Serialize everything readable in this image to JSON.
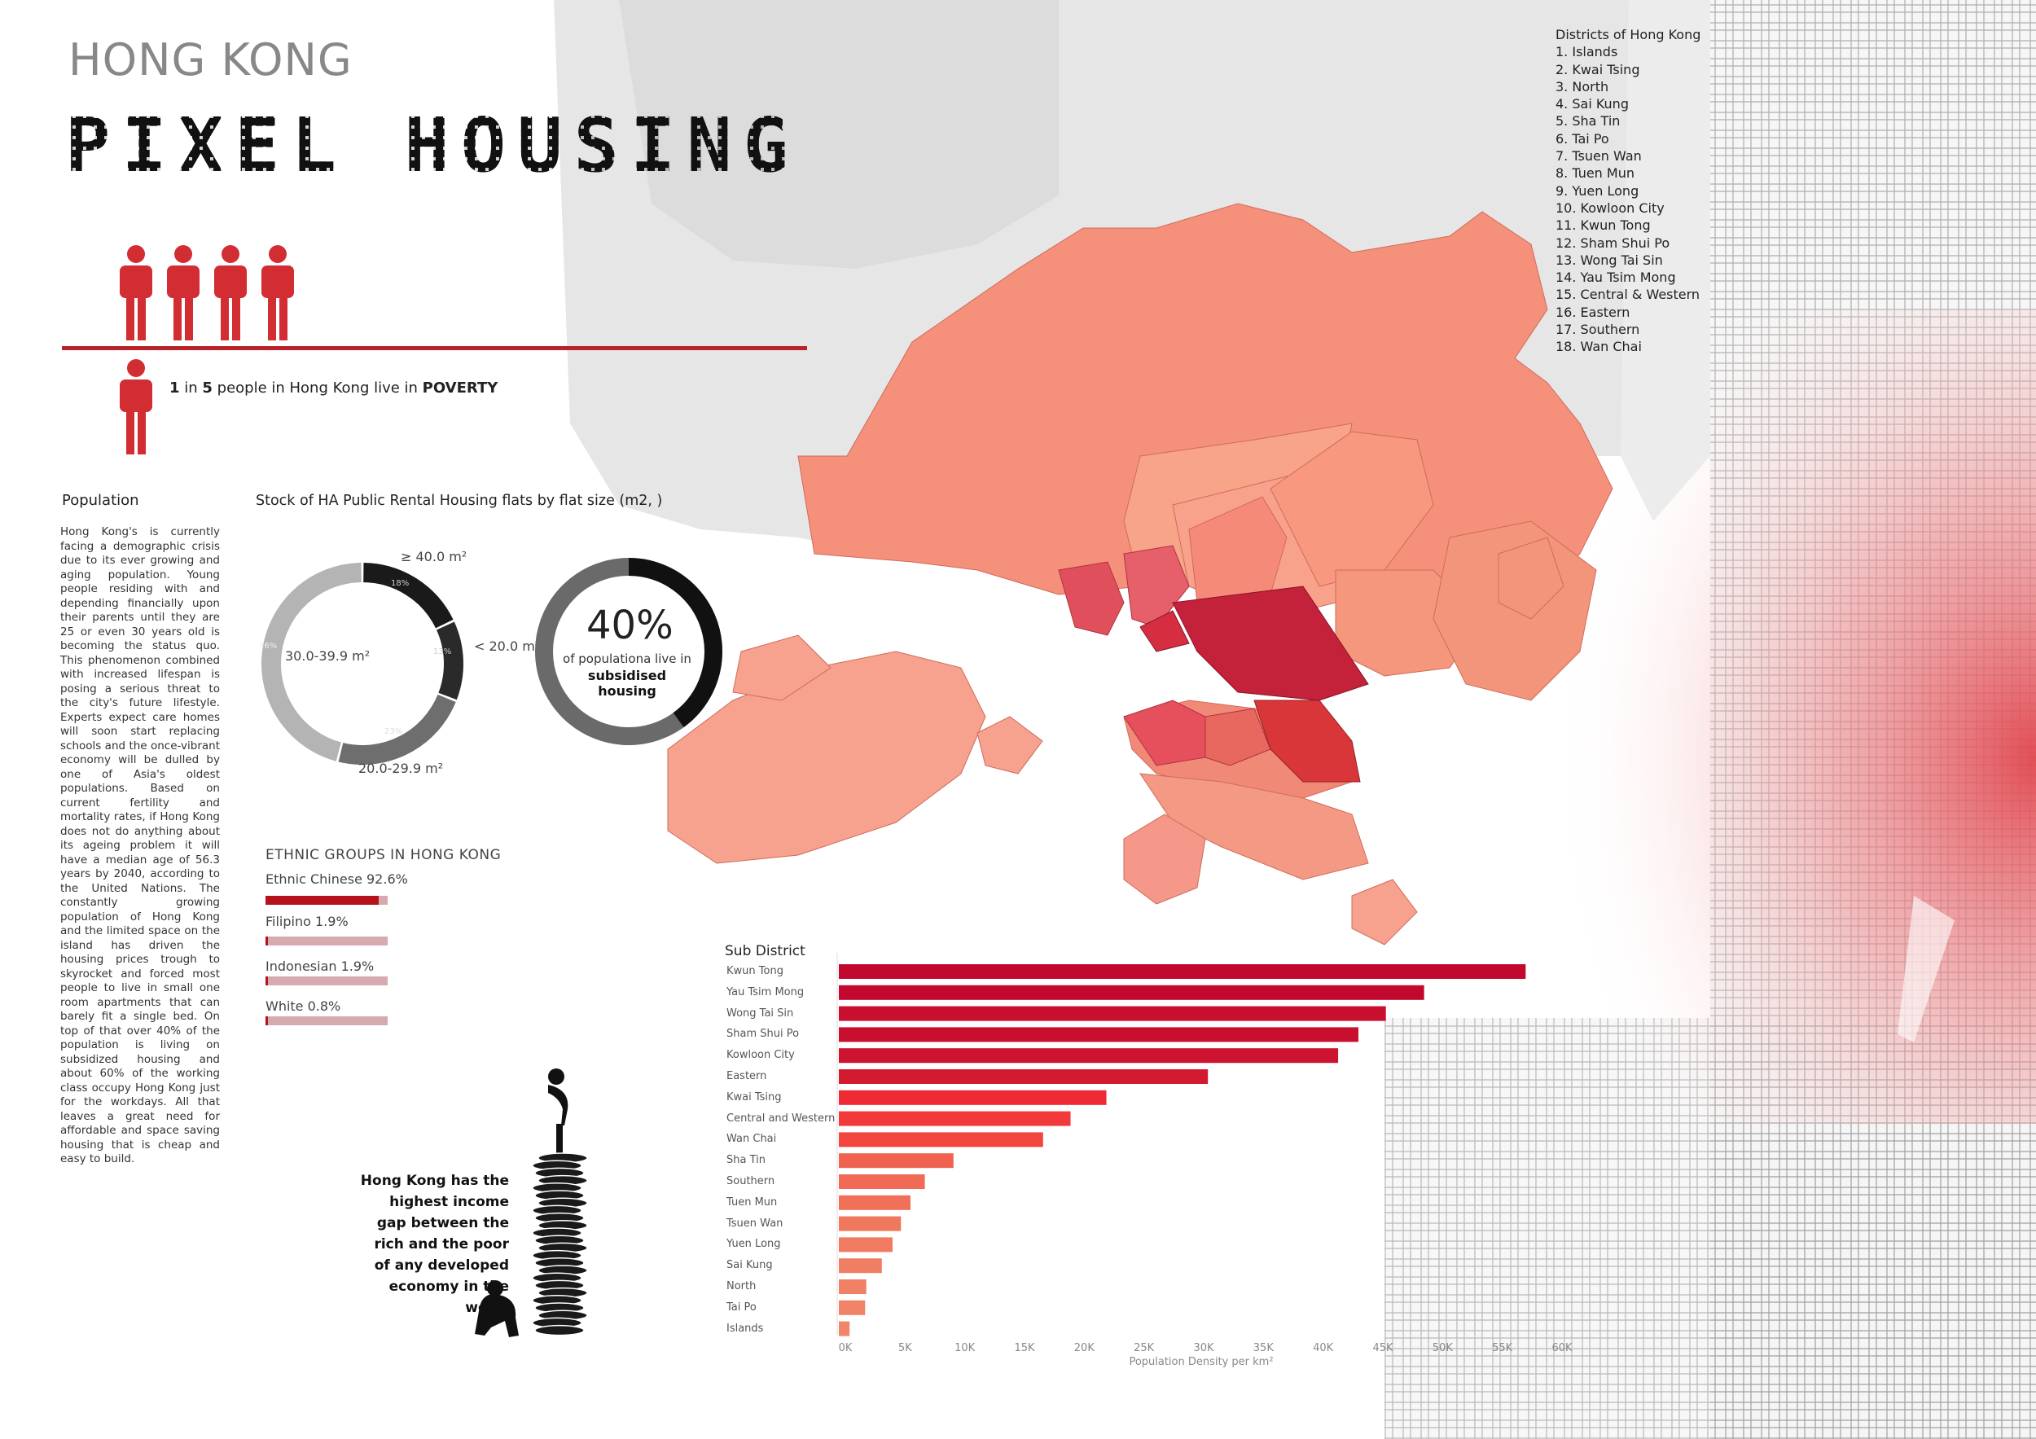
{
  "header": {
    "title_top": "HONG KONG",
    "title_main": "PIXEL HOUSING"
  },
  "poverty": {
    "ratio_a": "1",
    "text_mid": " in ",
    "ratio_b": "5",
    "text_end": " people in Hong Kong live in ",
    "highlight": "POVERTY"
  },
  "population": {
    "title": "Population",
    "body": "Hong Kong's is currently facing a demographic crisis due to its ever growing and aging population. Young people residing with and depending financially upon their parents until they are 25 or even 30 years old is becoming the status quo. This phenomenon combined with increased lifespan is posing a serious threat to the city's future lifestyle. Experts expect care homes will soon start replacing schools and the once-vibrant economy will be dulled by one of Asia's oldest populations. Based on current fertility and mortality rates, if Hong Kong does not do anything about its ageing problem it will have a median age of 56.3 years by 2040, according to the United Nations. The constantly growing population of Hong Kong and the limited space on the island has driven the housing prices trough to skyrocket and forced most people to live in small one room apartments that can barely fit a single bed. On top of that over 40% of the population is living on subsidized housing and about 60% of the working class occupy Hong Kong just for the workdays. All that leaves a great need for affordable and space saving housing that is cheap and easy to build."
  },
  "districts": {
    "title": "Districts of Hong Kong",
    "items": [
      "1. Islands",
      "2. Kwai Tsing",
      "3. North",
      "4. Sai Kung",
      "5. Sha Tin",
      "6. Tai Po",
      "7. Tsuen Wan",
      "8. Tuen Mun",
      "9. Yuen Long",
      "10. Kowloon City",
      "11. Kwun Tong",
      "12. Sham Shui Po",
      "13. Wong Tai Sin",
      "14. Yau Tsim Mong",
      "15. Central & Western",
      "16. Eastern",
      "17. Southern",
      "18. Wan Chai"
    ]
  },
  "subsidised": {
    "percent": "40%",
    "line1": "of populationa live in",
    "line2": "subsidised housing",
    "fraction": 0.4
  },
  "ethnic": {
    "title": "ETHNIC GROUPS IN HONG KONG",
    "groups": [
      {
        "label": "Ethnic Chinese 92.6%",
        "value": 92.6
      },
      {
        "label": "Filipino 1.9%",
        "value": 1.9
      },
      {
        "label": "Indonesian  1.9%",
        "value": 1.9
      },
      {
        "label": "White 0.8%",
        "value": 0.8
      }
    ]
  },
  "income_gap": {
    "text": "Hong Kong has the highest income gap between the rich and the poor of any developed economy in the world"
  },
  "chart_data": [
    {
      "type": "pie",
      "title": "Stock of HA Public Rental Housing flats by flat size (m2, )",
      "slices": [
        {
          "label": "≥ 40.0 m²",
          "value": 18,
          "color": "#1a1a1a",
          "pct_label": "18%"
        },
        {
          "label": "< 20.0 m²",
          "value": 13,
          "color": "#2a2a2a",
          "pct_label": "13%"
        },
        {
          "label": "20.0-29.9 m²",
          "value": 23,
          "color": "#6e6e6e",
          "pct_label": "23%"
        },
        {
          "label": "30.0-39.9 m²",
          "value": 46,
          "color": "#b4b4b4",
          "pct_label": "46%"
        }
      ]
    },
    {
      "type": "bar",
      "orientation": "horizontal",
      "title": "Sub District",
      "xlabel": "Population Density per km²",
      "xlim": [
        0,
        60000
      ],
      "xticks": [
        "0K",
        "5K",
        "10K",
        "15K",
        "20K",
        "25K",
        "30K",
        "35K",
        "40K",
        "45K",
        "50K",
        "55K",
        "60K"
      ],
      "categories": [
        "Kwun Tong",
        "Yau Tsim Mong",
        "Wong Tai Sin",
        "Sham Shui Po",
        "Kowloon City",
        "Eastern",
        "Kwai Tsing",
        "Central and Western",
        "Wan Chai",
        "Sha Tin",
        "Southern",
        "Tuen Mun",
        "Tsuen Wan",
        "Yuen Long",
        "Sai Kung",
        "North",
        "Tai Po",
        "Islands"
      ],
      "values": [
        57500,
        49000,
        45800,
        43500,
        41800,
        30900,
        22400,
        19400,
        17100,
        9600,
        7200,
        6000,
        5200,
        4500,
        3600,
        2300,
        2200,
        900
      ],
      "colors": [
        "#c2082f",
        "#c2082f",
        "#c80f2f",
        "#c80f2f",
        "#cc1330",
        "#d21a30",
        "#ee2a35",
        "#f23a3a",
        "#f2453f",
        "#f0624f",
        "#f06a55",
        "#f07158",
        "#f0785d",
        "#f07b60",
        "#f07e62",
        "#f08164",
        "#f08367",
        "#f08669"
      ]
    }
  ]
}
